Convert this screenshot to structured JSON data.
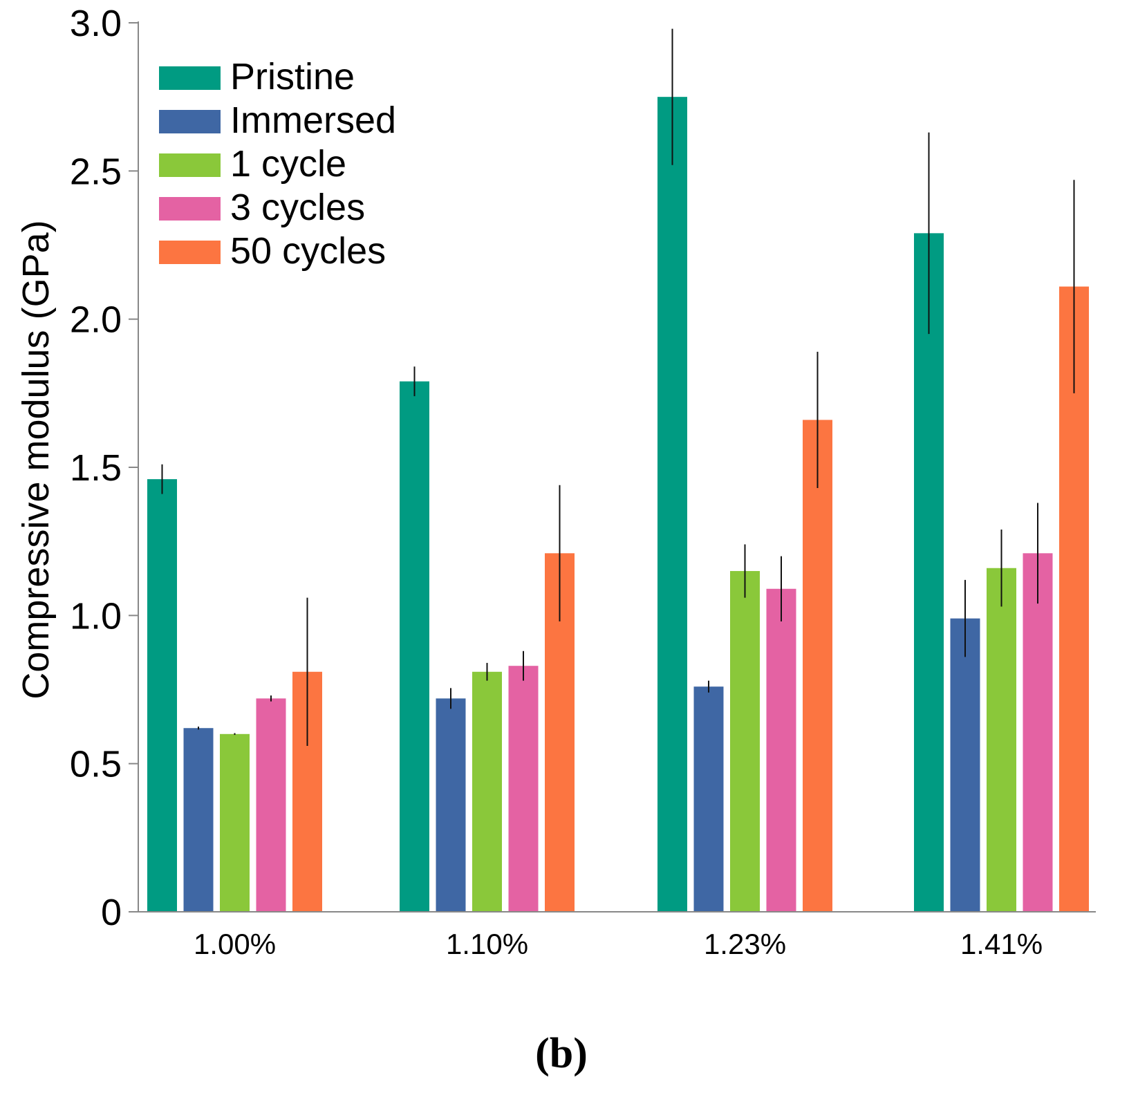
{
  "chart_data": {
    "type": "bar",
    "title": "",
    "xlabel": "",
    "ylabel": "Compressive modulus (GPa)",
    "ylim": [
      0,
      3.0
    ],
    "yticks": [
      {
        "value": 0,
        "label": "0"
      },
      {
        "value": 0.5,
        "label": "0.5"
      },
      {
        "value": 1.0,
        "label": "1.0"
      },
      {
        "value": 1.5,
        "label": "1.5"
      },
      {
        "value": 2.0,
        "label": "2.0"
      },
      {
        "value": 2.5,
        "label": "2.5"
      },
      {
        "value": 3.0,
        "label": "3.0"
      }
    ],
    "categories": [
      "1.00%",
      "1.10%",
      "1.23%",
      "1.41%"
    ],
    "series": [
      {
        "name": "Pristine",
        "color": "#009B82",
        "values": [
          1.46,
          1.79,
          2.75,
          2.29
        ],
        "errors": [
          0.05,
          0.05,
          0.23,
          0.34
        ]
      },
      {
        "name": "Immersed",
        "color": "#3F67A4",
        "values": [
          0.62,
          0.72,
          0.76,
          0.99
        ],
        "errors": [
          0.005,
          0.035,
          0.02,
          0.13
        ]
      },
      {
        "name": "1 cycle",
        "color": "#8AC83A",
        "values": [
          0.6,
          0.81,
          1.15,
          1.16
        ],
        "errors": [
          0.003,
          0.03,
          0.09,
          0.13
        ]
      },
      {
        "name": "3 cycles",
        "color": "#E462A3",
        "values": [
          0.72,
          0.83,
          1.09,
          1.21
        ],
        "errors": [
          0.01,
          0.05,
          0.11,
          0.17
        ]
      },
      {
        "name": "50 cycles",
        "color": "#FC7541",
        "values": [
          0.81,
          1.21,
          1.66,
          2.11
        ],
        "errors": [
          0.25,
          0.23,
          0.23,
          0.36
        ]
      }
    ],
    "grid": false,
    "legend_position": "top-left",
    "panel_label": "(b)"
  }
}
